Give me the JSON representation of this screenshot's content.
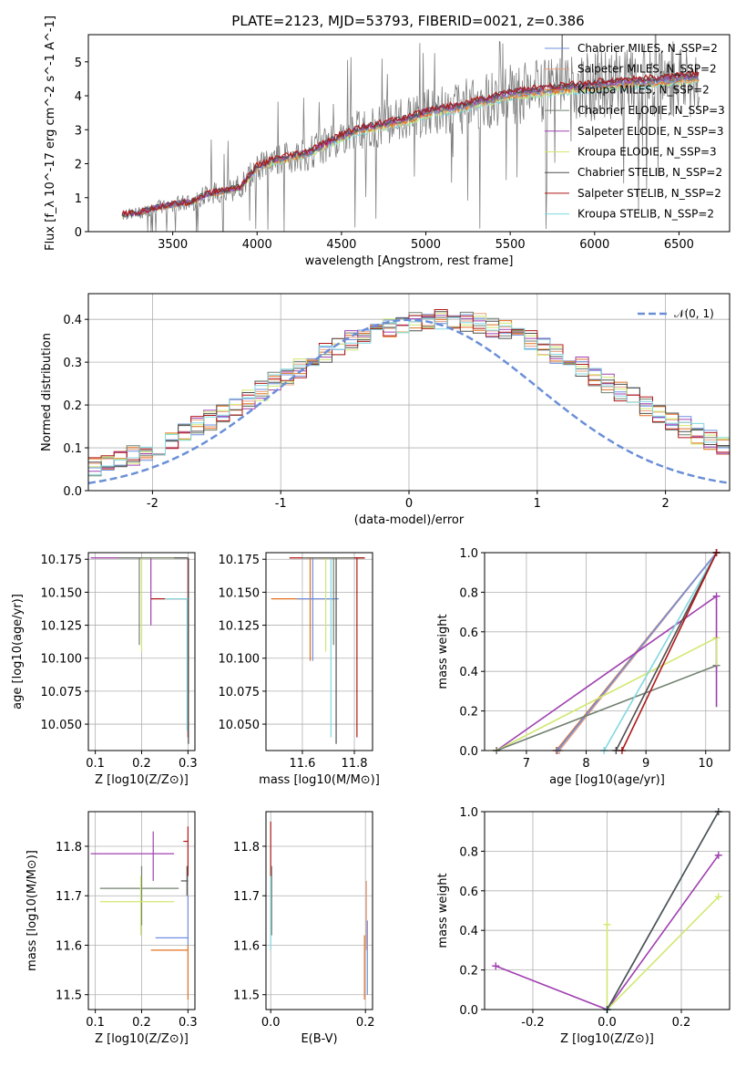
{
  "title": "PLATE=2123, MJD=53793, FIBERID=0021, z=0.386",
  "colors": {
    "chabrier_miles": "#6f8fe0",
    "salpeter_miles": "#e8a080",
    "kroupa_miles": "#e07020",
    "chabrier_elodie": "#708070",
    "salpeter_elodie": "#a040b0",
    "kroupa_elodie": "#d0e870",
    "chabrier_stelib": "#505050",
    "salpeter_stelib": "#b01818",
    "kroupa_stelib": "#80d8e0",
    "data": "#808080",
    "normal": "#6a8fd8"
  },
  "chart_data": [
    {
      "id": "spectrum",
      "type": "line",
      "xlabel": "wavelength [Angstrom, rest frame]",
      "ylabel": "Flux [f_λ 10^-17 erg cm^-2 s^-1 A^-1]",
      "xlim": [
        3000,
        6800
      ],
      "ylim": [
        0,
        5.8
      ],
      "xticks": [
        3500,
        4000,
        4500,
        5000,
        5500,
        6000,
        6500
      ],
      "yticks": [
        0,
        1,
        2,
        3,
        4,
        5
      ],
      "grid": false,
      "legend_position": "top-right",
      "legend": [
        "Chabrier MILES, N_SSP=2",
        "Salpeter MILES, N_SSP=2",
        "Kroupa MILES, N_SSP=2",
        "Chabrier ELODIE, N_SSP=3",
        "Salpeter ELODIE, N_SSP=3",
        "Kroupa ELODIE, N_SSP=3",
        "Chabrier STELIB, N_SSP=2",
        "Salpeter STELIB, N_SSP=2",
        "Kroupa STELIB, N_SSP=2"
      ],
      "model_continuum": {
        "x": [
          3200,
          3300,
          3400,
          3500,
          3600,
          3700,
          3800,
          3900,
          4000,
          4100,
          4200,
          4300,
          4400,
          4500,
          4600,
          4700,
          4800,
          4900,
          5000,
          5100,
          5200,
          5300,
          5400,
          5500,
          5600,
          5700,
          5800,
          5900,
          6000,
          6100,
          6200,
          6300,
          6400,
          6500,
          6600
        ],
        "y": [
          0.5,
          0.55,
          0.7,
          0.8,
          0.85,
          1.1,
          1.2,
          1.3,
          1.9,
          2.1,
          2.2,
          2.3,
          2.55,
          2.8,
          3.0,
          3.1,
          3.2,
          3.3,
          3.5,
          3.6,
          3.65,
          3.8,
          3.9,
          4.05,
          4.1,
          4.15,
          4.2,
          4.25,
          4.3,
          4.35,
          4.4,
          4.4,
          4.45,
          4.5,
          4.55
        ]
      }
    },
    {
      "id": "residuals",
      "type": "histogram",
      "xlabel": "(data-model)/error",
      "ylabel": "Normed distribution",
      "xlim": [
        -2.5,
        2.5
      ],
      "ylim": [
        0,
        0.46
      ],
      "xticks": [
        -2,
        -1,
        0,
        1,
        2
      ],
      "yticks": [
        0.0,
        0.1,
        0.2,
        0.3,
        0.4
      ],
      "grid": true,
      "legend_position": "top-right",
      "legend": [
        "𝒩(0, 1)"
      ]
    },
    {
      "id": "z-age",
      "type": "scatter",
      "xlabel": "Z [log10(Z/Z⊙)]",
      "ylabel": "age  [log10(age/yr)]",
      "xlim": [
        0.085,
        0.315
      ],
      "ylim": [
        10.03,
        10.18
      ],
      "xticks": [
        0.1,
        0.2,
        0.3
      ],
      "yticks": [
        10.05,
        10.075,
        10.1,
        10.125,
        10.15,
        10.175
      ],
      "grid": true
    },
    {
      "id": "mass-age",
      "type": "scatter",
      "xlabel": "mass [log10(M/M⊙)]",
      "ylabel": "",
      "xlim": [
        11.46,
        11.87
      ],
      "ylim": [
        10.03,
        10.18
      ],
      "xticks": [
        11.6,
        11.8
      ],
      "yticks": [
        10.05,
        10.075,
        10.1,
        10.125,
        10.15,
        10.175
      ],
      "grid": true
    },
    {
      "id": "age-massweight",
      "type": "line",
      "xlabel": "age  [log10(age/yr)]",
      "ylabel": "mass weight",
      "xlim": [
        6.3,
        10.4
      ],
      "ylim": [
        0,
        1.0
      ],
      "xticks": [
        7,
        8,
        9,
        10
      ],
      "yticks": [
        0.0,
        0.2,
        0.4,
        0.6,
        0.8,
        1.0
      ],
      "grid": true,
      "series": [
        {
          "color": "kroupa_miles",
          "x": [
            7.5,
            10.18
          ],
          "y": [
            0.0,
            1.0
          ]
        },
        {
          "color": "salpeter_miles",
          "x": [
            7.55,
            10.18
          ],
          "y": [
            0.0,
            1.0
          ]
        },
        {
          "color": "chabrier_miles",
          "x": [
            7.52,
            10.18
          ],
          "y": [
            0.0,
            1.0
          ]
        },
        {
          "color": "salpeter_elodie",
          "x": [
            6.5,
            10.18
          ],
          "y": [
            0.0,
            0.78
          ]
        },
        {
          "color": "kroupa_elodie",
          "x": [
            6.5,
            10.18
          ],
          "y": [
            0.0,
            0.57
          ]
        },
        {
          "color": "chabrier_elodie",
          "x": [
            6.5,
            10.18
          ],
          "y": [
            0.0,
            0.43
          ]
        },
        {
          "color": "kroupa_stelib",
          "x": [
            8.3,
            10.18
          ],
          "y": [
            0.0,
            1.0
          ]
        },
        {
          "color": "chabrier_stelib",
          "x": [
            8.5,
            10.18
          ],
          "y": [
            0.0,
            1.0
          ]
        },
        {
          "color": "salpeter_stelib",
          "x": [
            8.6,
            10.18
          ],
          "y": [
            0.0,
            1.0
          ]
        }
      ]
    },
    {
      "id": "z-mass",
      "type": "scatter",
      "xlabel": "Z [log10(Z/Z⊙)]",
      "ylabel": "mass [log10(M/M⊙)]",
      "xlim": [
        0.085,
        0.315
      ],
      "ylim": [
        11.47,
        11.87
      ],
      "xticks": [
        0.1,
        0.2,
        0.3
      ],
      "yticks": [
        11.5,
        11.6,
        11.7,
        11.8
      ],
      "grid": true
    },
    {
      "id": "ebv-mass",
      "type": "scatter",
      "xlabel": "E(B-V)",
      "ylabel": "",
      "xlim": [
        -0.01,
        0.215
      ],
      "ylim": [
        11.47,
        11.87
      ],
      "xticks": [
        0.0,
        0.2
      ],
      "yticks": [
        11.5,
        11.6,
        11.7,
        11.8
      ],
      "grid": true
    },
    {
      "id": "z-massweight",
      "type": "line",
      "xlabel": "Z [log10(Z/Z⊙)]",
      "ylabel": "mass weight",
      "xlim": [
        -0.33,
        0.33
      ],
      "ylim": [
        0,
        1.0
      ],
      "xticks": [
        -0.2,
        0.0,
        0.2
      ],
      "yticks": [
        0.0,
        0.2,
        0.4,
        0.6,
        0.8,
        1.0
      ],
      "grid": true,
      "series": [
        {
          "color": "salpeter_elodie",
          "x": [
            -0.3,
            0.0,
            0.3
          ],
          "y": [
            0.22,
            0.0,
            0.78
          ]
        },
        {
          "color": "kroupa_elodie",
          "x": [
            0.0,
            0.0,
            0.3
          ],
          "y": [
            0.43,
            0.0,
            0.57
          ]
        },
        {
          "color": "chabrier_miles",
          "x": [
            0.0,
            0.3
          ],
          "y": [
            0.0,
            1.0
          ]
        },
        {
          "color": "kroupa_stelib",
          "x": [
            0.0,
            0.3
          ],
          "y": [
            0.0,
            1.0
          ]
        },
        {
          "color": "chabrier_stelib",
          "x": [
            0.0,
            0.3
          ],
          "y": [
            0.0,
            1.0
          ]
        }
      ]
    }
  ]
}
